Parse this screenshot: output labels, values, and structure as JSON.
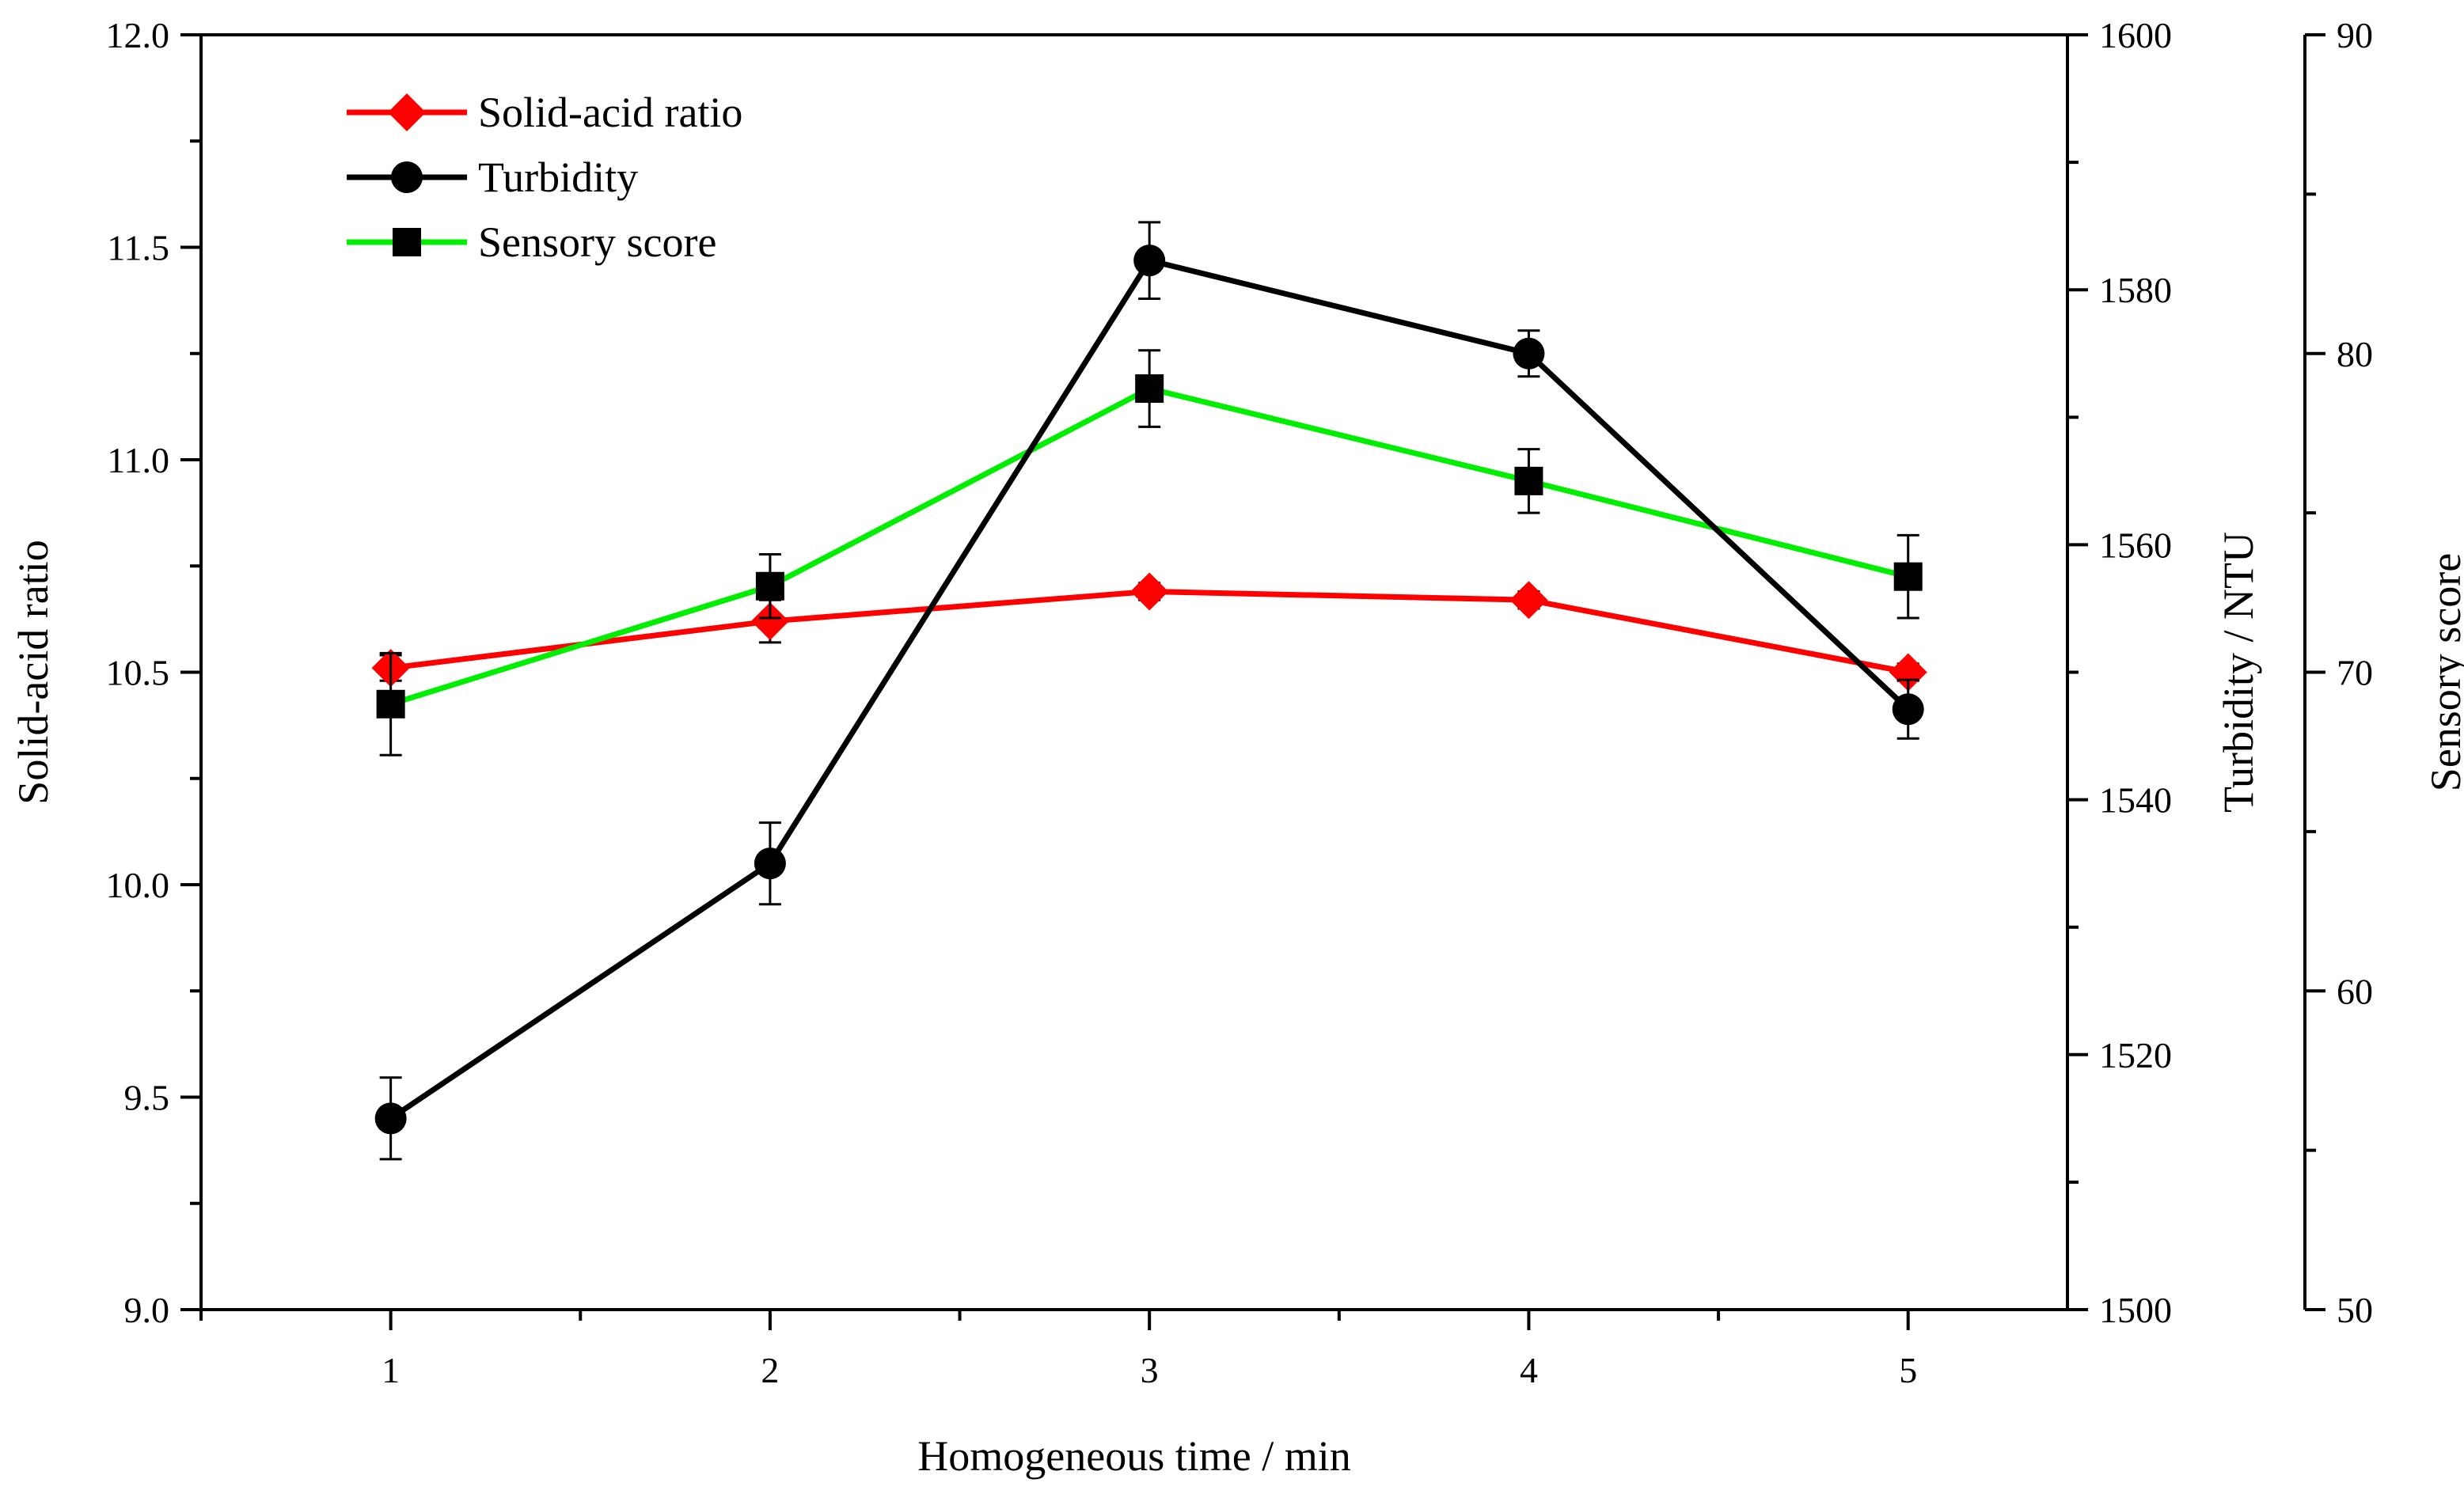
{
  "chart_data": {
    "type": "line",
    "xlabel": "Homogeneous time / min",
    "x": [
      1,
      2,
      3,
      4,
      5
    ],
    "xlim": [
      0.5,
      5.42
    ],
    "x_ticks": [
      "1",
      "2",
      "3",
      "4",
      "5"
    ],
    "legend_position": "top-left",
    "axes": [
      {
        "id": "left",
        "label": "Solid-acid ratio",
        "lim": [
          9.0,
          12.0
        ],
        "ticks": [
          "9.0",
          "9.5",
          "10.0",
          "10.5",
          "11.0",
          "11.5",
          "12.0"
        ]
      },
      {
        "id": "right1",
        "label": "Turbidity / NTU",
        "lim": [
          1500,
          1600
        ],
        "ticks": [
          "1500",
          "1520",
          "1540",
          "1560",
          "1580",
          "1600"
        ]
      },
      {
        "id": "right2",
        "label": "Sensory score",
        "lim": [
          50,
          90
        ],
        "ticks": [
          "50",
          "60",
          "70",
          "80",
          "90"
        ]
      }
    ],
    "series": [
      {
        "name": "Solid-acid ratio",
        "axis": "left",
        "color": "#ff0000",
        "marker": "diamond",
        "values": [
          10.51,
          10.62,
          10.69,
          10.67,
          10.5
        ],
        "errors": [
          0.03,
          0.05,
          0.02,
          0.02,
          0.02
        ]
      },
      {
        "name": "Turbidity",
        "axis": "right1",
        "color": "#000000",
        "marker": "circle",
        "values": [
          1515.0,
          1535.0,
          1582.3,
          1575.0,
          1547.1
        ],
        "errors": [
          3.2,
          3.2,
          3.0,
          1.8,
          2.3
        ]
      },
      {
        "name": "Sensory score",
        "axis": "right2",
        "color": "#00ee00",
        "marker": "square",
        "values": [
          69.0,
          72.7,
          78.9,
          76.0,
          73.0
        ],
        "errors": [
          1.6,
          1.0,
          1.2,
          1.0,
          1.3
        ]
      }
    ]
  }
}
